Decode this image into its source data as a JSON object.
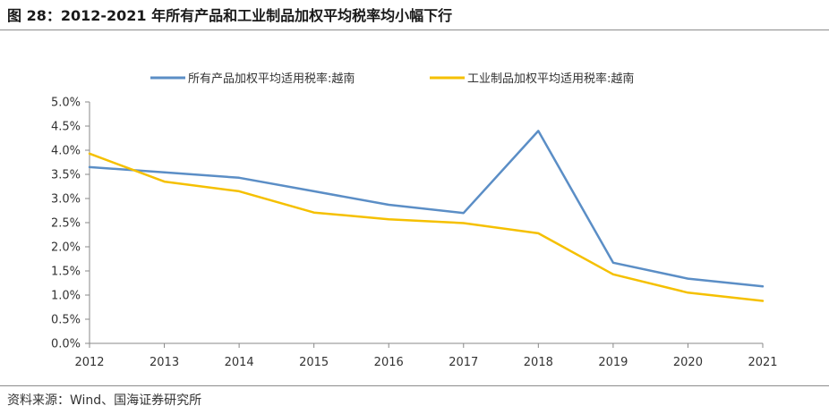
{
  "title": "图 28：2012-2021 年所有产品和工业制品加权平均税率均小幅下行",
  "source": "资料来源：Wind、国海证券研究所",
  "chart_data": {
    "type": "line",
    "x": [
      "2012",
      "2013",
      "2014",
      "2015",
      "2016",
      "2017",
      "2018",
      "2019",
      "2020",
      "2021"
    ],
    "series": [
      {
        "name": "所有产品加权平均适用税率:越南",
        "color": "#5b8ec6",
        "values": [
          3.65,
          3.54,
          3.43,
          3.15,
          2.87,
          2.7,
          4.4,
          1.67,
          1.34,
          1.18
        ]
      },
      {
        "name": "工业制品加权平均适用税率:越南",
        "color": "#f5c000",
        "values": [
          3.93,
          3.35,
          3.15,
          2.71,
          2.57,
          2.49,
          2.28,
          1.43,
          1.05,
          0.88
        ]
      }
    ],
    "y_ticks": [
      "0.0%",
      "0.5%",
      "1.0%",
      "1.5%",
      "2.0%",
      "2.5%",
      "3.0%",
      "3.5%",
      "4.0%",
      "4.5%",
      "5.0%"
    ],
    "ylim": [
      0,
      5.0
    ],
    "grid": false,
    "legend_position": "top"
  }
}
